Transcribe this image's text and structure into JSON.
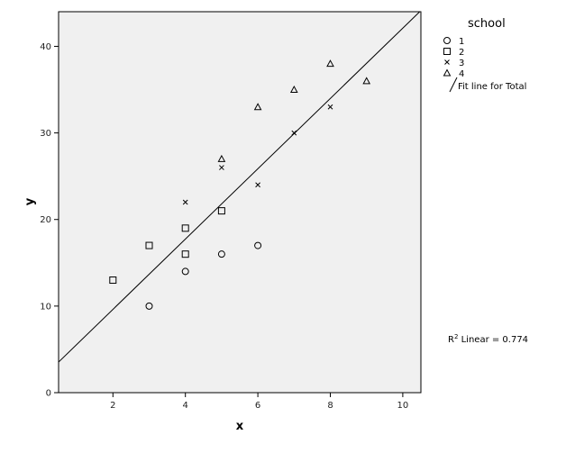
{
  "chart_data": {
    "type": "scatter",
    "xlabel": "x",
    "ylabel": "y",
    "xlim": [
      0.5,
      10.5
    ],
    "ylim": [
      0,
      44
    ],
    "xticks": [
      2,
      4,
      6,
      8,
      10
    ],
    "yticks": [
      0,
      10,
      20,
      30,
      40
    ],
    "background": "#f0f0f0",
    "legend": {
      "title": "school",
      "placement": "right",
      "entries": [
        {
          "label": "1",
          "marker": "circle"
        },
        {
          "label": "2",
          "marker": "square"
        },
        {
          "label": "3",
          "marker": "x"
        },
        {
          "label": "4",
          "marker": "triangle"
        },
        {
          "label": "Fit line for Total",
          "marker": "line"
        }
      ]
    },
    "series": [
      {
        "name": "1",
        "marker": "circle",
        "points": [
          [
            3,
            10
          ],
          [
            4,
            14
          ],
          [
            5,
            16
          ],
          [
            6,
            17
          ]
        ]
      },
      {
        "name": "2",
        "marker": "square",
        "points": [
          [
            2,
            13
          ],
          [
            3,
            17
          ],
          [
            4,
            16
          ],
          [
            4,
            19
          ],
          [
            5,
            21
          ]
        ]
      },
      {
        "name": "3",
        "marker": "x",
        "points": [
          [
            4,
            22
          ],
          [
            5,
            26
          ],
          [
            6,
            24
          ],
          [
            7,
            30
          ],
          [
            8,
            33
          ]
        ]
      },
      {
        "name": "4",
        "marker": "triangle",
        "points": [
          [
            5,
            27
          ],
          [
            6,
            33
          ],
          [
            7,
            35
          ],
          [
            8,
            38
          ],
          [
            9,
            36
          ]
        ]
      }
    ],
    "fit_line": {
      "name": "Fit line for Total",
      "slope": 4.06,
      "intercept": 1.5
    },
    "annotation": {
      "r2_prefix": "R",
      "r2_sup": "2",
      "r2_text": " Linear = 0.774"
    }
  }
}
